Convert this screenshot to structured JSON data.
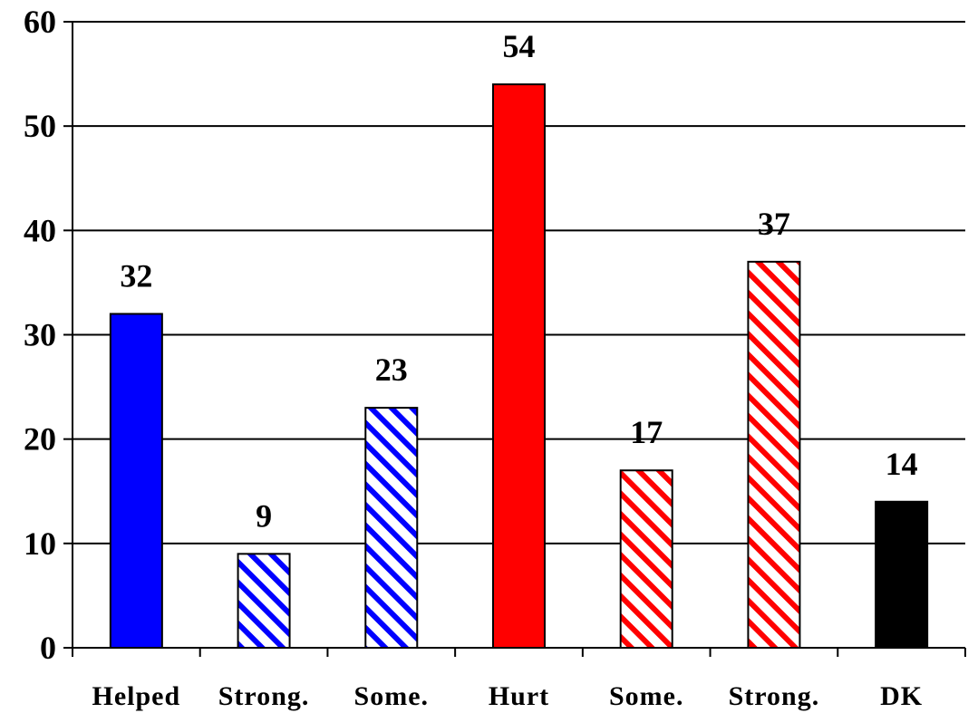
{
  "chart_data": {
    "type": "bar",
    "categories": [
      "Helped",
      "Strong.",
      "Some.",
      "Hurt",
      "Some.",
      "Strong.",
      "DK"
    ],
    "values": [
      32,
      9,
      23,
      54,
      17,
      37,
      14
    ],
    "data_labels": [
      "32",
      "9",
      "23",
      "54",
      "17",
      "37",
      "14"
    ],
    "styles": [
      {
        "fill": "solid",
        "color": "#0000ff"
      },
      {
        "fill": "hatched",
        "color": "#0000ff"
      },
      {
        "fill": "hatched",
        "color": "#0000ff"
      },
      {
        "fill": "solid",
        "color": "#ff0000"
      },
      {
        "fill": "hatched",
        "color": "#ff0000"
      },
      {
        "fill": "hatched",
        "color": "#ff0000"
      },
      {
        "fill": "solid",
        "color": "#000000"
      }
    ],
    "title": "",
    "xlabel": "",
    "ylabel": "",
    "ylim": [
      0,
      60
    ],
    "yticks": [
      0,
      10,
      20,
      30,
      40,
      50,
      60
    ],
    "grid": true,
    "legend": "none"
  }
}
